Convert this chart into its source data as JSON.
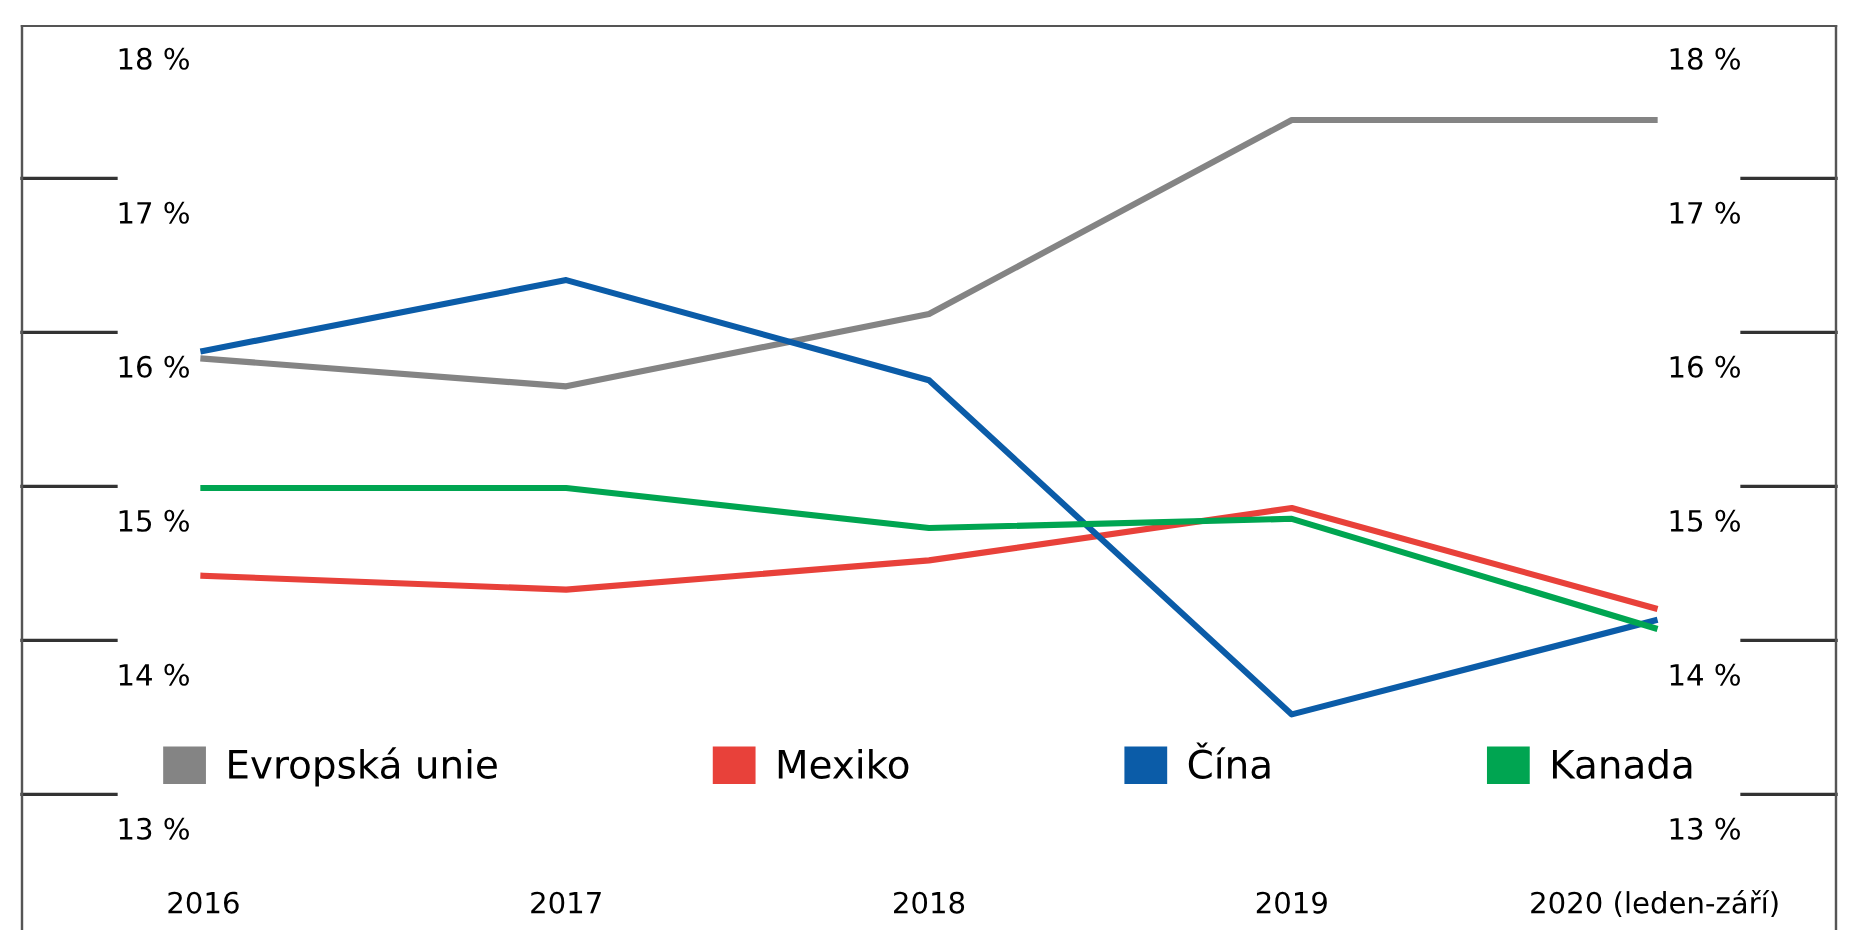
{
  "chart_data": {
    "type": "line",
    "categories": [
      "2016",
      "2017",
      "2018",
      "2019",
      "2020 (leden-září)"
    ],
    "series": [
      {
        "name": "Evropská unie",
        "color": "#848484",
        "values": [
          16.05,
          15.87,
          16.34,
          17.6,
          17.6
        ]
      },
      {
        "name": "Mexiko",
        "color": "#e8413a",
        "values": [
          14.64,
          14.55,
          14.74,
          15.08,
          14.43
        ]
      },
      {
        "name": "Čína",
        "color": "#0b5ca8",
        "values": [
          16.1,
          16.56,
          15.91,
          13.74,
          14.35
        ]
      },
      {
        "name": "Kanada",
        "color": "#00a551",
        "values": [
          15.21,
          15.21,
          14.95,
          15.01,
          14.3
        ]
      }
    ],
    "ylim": [
      12.34,
      18.21
    ],
    "yticks": [
      {
        "value": 13,
        "label": "13 %"
      },
      {
        "value": 14,
        "label": "14 %"
      },
      {
        "value": 15,
        "label": "15 %"
      },
      {
        "value": 16,
        "label": "16 %"
      },
      {
        "value": 17,
        "label": "17 %"
      },
      {
        "value": 18,
        "label": "18 %"
      }
    ],
    "y2lim": [
      12.34,
      18.21
    ],
    "y2ticks": [
      {
        "value": 13,
        "label": "13 %"
      },
      {
        "value": 14,
        "label": "14 %"
      },
      {
        "value": 15,
        "label": "15 %"
      },
      {
        "value": 16,
        "label": "16 %"
      },
      {
        "value": 17,
        "label": "17 %"
      },
      {
        "value": 18,
        "label": "18 %"
      }
    ],
    "grid": false,
    "legend": "bottom",
    "marker": "none",
    "line_style": "solid"
  }
}
